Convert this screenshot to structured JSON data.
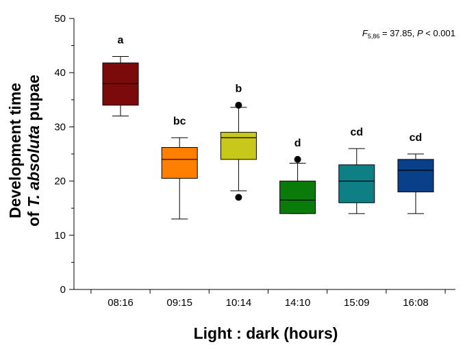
{
  "chart_data": {
    "type": "box",
    "xlabel": "Light : dark (hours)",
    "ylabel": {
      "line1": "Development time",
      "line2_prefix": "of ",
      "line2_italic": "T. absoluta",
      "line2_suffix": " pupae"
    },
    "ylim": [
      0,
      50
    ],
    "yticks": [
      0,
      10,
      20,
      30,
      40,
      50
    ],
    "annotation": {
      "f_symbol": "F",
      "f_subscript": "5,86",
      "f_value": " = 37.85, ",
      "p_symbol": "P",
      "p_value": " < 0.001"
    },
    "categories": [
      "08:16",
      "09:15",
      "10:14",
      "14:10",
      "15:09",
      "16:08"
    ],
    "boxes": [
      {
        "category": "08:16",
        "min": 32,
        "q1": 34,
        "median": 38,
        "q3": 41.8,
        "max": 43,
        "outliers": [],
        "letter": "a",
        "color": "#7B0B0B"
      },
      {
        "category": "09:15",
        "min": 13,
        "q1": 20.5,
        "median": 24,
        "q3": 26.2,
        "max": 28,
        "outliers": [],
        "letter": "bc",
        "color": "#FF8000"
      },
      {
        "category": "10:14",
        "min": 18.2,
        "q1": 24,
        "median": 28,
        "q3": 29,
        "max": 33.6,
        "outliers": [
          34,
          17
        ],
        "letter": "b",
        "color": "#C8C81A"
      },
      {
        "category": "14:10",
        "min": 14,
        "q1": 14,
        "median": 16.5,
        "q3": 20,
        "max": 23.3,
        "outliers": [
          24
        ],
        "letter": "d",
        "color": "#0A7A0A"
      },
      {
        "category": "15:09",
        "min": 14,
        "q1": 16,
        "median": 20,
        "q3": 23,
        "max": 26,
        "outliers": [],
        "letter": "cd",
        "color": "#0E7F84"
      },
      {
        "category": "16:08",
        "min": 14,
        "q1": 18,
        "median": 22,
        "q3": 24,
        "max": 25,
        "outliers": [],
        "letter": "cd",
        "color": "#0A3F8A"
      }
    ]
  }
}
